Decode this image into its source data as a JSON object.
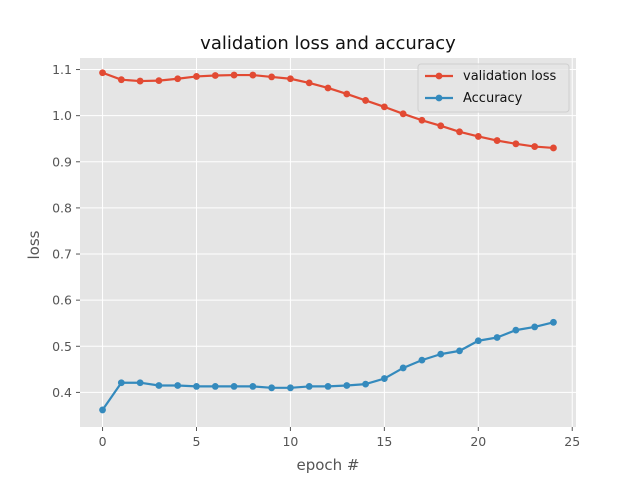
{
  "chart_data": {
    "type": "line",
    "title": "validation loss and accuracy",
    "xlabel": "epoch #",
    "ylabel": "loss",
    "xlim": [
      -1.2,
      25.2
    ],
    "ylim": [
      0.325,
      1.125
    ],
    "xticks": [
      0,
      5,
      10,
      15,
      20,
      25
    ],
    "yticks": [
      0.4,
      0.5,
      0.6,
      0.7,
      0.8,
      0.9,
      1.0,
      1.1
    ],
    "xtick_labels": [
      "0",
      "5",
      "10",
      "15",
      "20",
      "25"
    ],
    "ytick_labels": [
      "0.4",
      "0.5",
      "0.6",
      "0.7",
      "0.8",
      "0.9",
      "1.0",
      "1.1"
    ],
    "grid": true,
    "legend_position": "top-right",
    "x": [
      0,
      1,
      2,
      3,
      4,
      5,
      6,
      7,
      8,
      9,
      10,
      11,
      12,
      13,
      14,
      15,
      16,
      17,
      18,
      19,
      20,
      21,
      22,
      23,
      24
    ],
    "series": [
      {
        "name": "validation loss",
        "color": "#E24A33",
        "values": [
          1.093,
          1.078,
          1.075,
          1.076,
          1.08,
          1.085,
          1.087,
          1.088,
          1.088,
          1.084,
          1.08,
          1.071,
          1.06,
          1.047,
          1.033,
          1.019,
          1.004,
          0.99,
          0.978,
          0.965,
          0.955,
          0.946,
          0.939,
          0.933,
          0.93
        ]
      },
      {
        "name": "Accuracy",
        "color": "#348ABD",
        "values": [
          0.362,
          0.421,
          0.421,
          0.415,
          0.415,
          0.413,
          0.413,
          0.413,
          0.413,
          0.41,
          0.41,
          0.413,
          0.413,
          0.415,
          0.418,
          0.43,
          0.453,
          0.47,
          0.483,
          0.49,
          0.512,
          0.519,
          0.535,
          0.542,
          0.552
        ]
      }
    ]
  }
}
